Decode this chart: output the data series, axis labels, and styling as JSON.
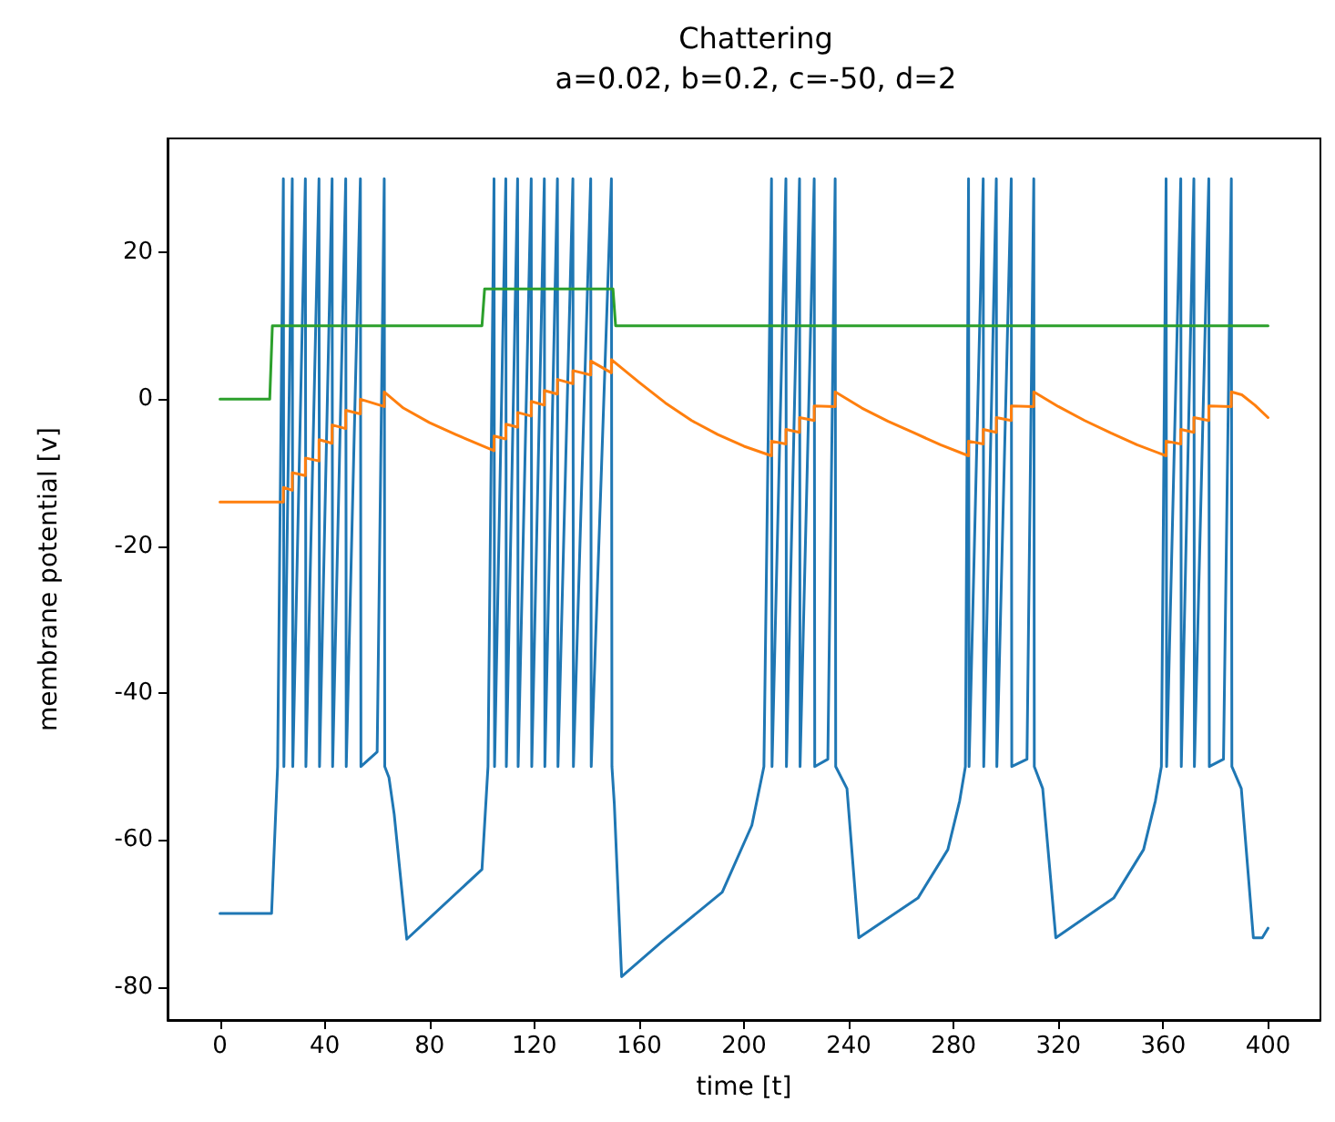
{
  "chart_data": {
    "type": "line",
    "title": "Chattering",
    "subtitle": "a=0.02, b=0.2, c=-50, d=2",
    "xlabel": "time [t]",
    "ylabel": "membrane potential [v]",
    "xlim": [
      -20,
      420
    ],
    "xticks": [
      0,
      40,
      80,
      120,
      160,
      200,
      240,
      280,
      320,
      360,
      400
    ],
    "ylim": [
      -84.5,
      35.5
    ],
    "yticks": [
      -80,
      -60,
      -40,
      -20,
      0,
      20
    ],
    "grid": false,
    "marker": "none",
    "line_style": "solid",
    "series": [
      {
        "color": "#1f77b4",
        "x": [
          0,
          19.7,
          22,
          24.2,
          24.4,
          27.6,
          27.8,
          32.6,
          32.8,
          37.8,
          38,
          42.8,
          43,
          48,
          48.2,
          53.6,
          53.8,
          60,
          62.7,
          62.9,
          64.5,
          66.5,
          71.3,
          100,
          102.3,
          104.6,
          104.8,
          109.1,
          109.3,
          113.6,
          113.8,
          118.8,
          119,
          123.8,
          124,
          128.8,
          129,
          134.7,
          134.9,
          141.5,
          141.7,
          149.4,
          149.6,
          150.5,
          153.3,
          169.1,
          191.7,
          203,
          207.6,
          210.5,
          210.7,
          216,
          216.2,
          221.2,
          221.4,
          226.8,
          227,
          232,
          234.8,
          235,
          239.3,
          243.8,
          266.4,
          277.8,
          282.3,
          284.5,
          285.7,
          285.9,
          291.3,
          291.5,
          296.3,
          296.5,
          302,
          302.2,
          308,
          310.6,
          310.8,
          314,
          319,
          341.1,
          352.5,
          357,
          359.3,
          361.1,
          361.3,
          366.7,
          366.9,
          371.7,
          371.9,
          377.4,
          377.6,
          383,
          386,
          386.2,
          389.8,
          394.4,
          397.8,
          400
        ],
        "values": [
          -70,
          -70,
          -50,
          30,
          -50,
          30,
          -50,
          30,
          -50,
          30,
          -50,
          30,
          -50,
          30,
          -50,
          30,
          -50,
          -48,
          30,
          -50,
          -51.5,
          -56.5,
          -73.5,
          -64,
          -50,
          30,
          -50,
          30,
          -50,
          30,
          -50,
          30,
          -50,
          30,
          -50,
          30,
          -50,
          30,
          -50,
          30,
          -50,
          30,
          -50,
          -55,
          -78.6,
          -73.7,
          -67.1,
          -58,
          -50,
          30,
          -50,
          30,
          -50,
          30,
          -50,
          30,
          -50,
          -49,
          30,
          -50,
          -53,
          -73.3,
          -67.9,
          -61.3,
          -54.7,
          -50,
          30,
          -50,
          30,
          -50,
          30,
          -50,
          30,
          -50,
          -49,
          30,
          -50,
          -53,
          -73.3,
          -67.9,
          -61.3,
          -54.7,
          -50,
          30,
          -50,
          30,
          -50,
          30,
          -50,
          30,
          -50,
          -49,
          30,
          -50,
          -53,
          -73.3,
          -73.3,
          -72
        ]
      },
      {
        "color": "#ff7f0e",
        "x": [
          0,
          24.2,
          24.2,
          27.6,
          27.6,
          32.6,
          32.6,
          37.8,
          37.8,
          42.8,
          42.8,
          48,
          48,
          53.6,
          53.6,
          62.7,
          62.7,
          70,
          80,
          90,
          104.6,
          104.6,
          109.1,
          109.1,
          113.6,
          113.6,
          118.8,
          118.8,
          123.8,
          123.8,
          128.8,
          128.8,
          134.7,
          134.7,
          141.5,
          141.5,
          149.4,
          149.4,
          160,
          170,
          180,
          190,
          200,
          210.5,
          210.5,
          216,
          216,
          221.2,
          221.2,
          226.8,
          226.8,
          234.8,
          234.8,
          245,
          255,
          265,
          275,
          285.7,
          285.7,
          291.3,
          291.3,
          296.3,
          296.3,
          302,
          302,
          310.6,
          310.6,
          320,
          330,
          340,
          350,
          361.1,
          361.1,
          366.7,
          366.7,
          371.7,
          371.7,
          377.4,
          377.4,
          386,
          386,
          390,
          395,
          400
        ],
        "values": [
          -14,
          -14,
          -12,
          -12.4,
          -10,
          -10.4,
          -8,
          -8.4,
          -5.5,
          -6,
          -3.5,
          -4,
          -1.5,
          -2,
          0,
          -1,
          1,
          -1.2,
          -3.2,
          -4.8,
          -7,
          -5,
          -5.4,
          -3.4,
          -3.8,
          -1.8,
          -2.3,
          -0.3,
          -0.8,
          1.2,
          0.7,
          2.7,
          2.1,
          3.9,
          3.3,
          5.2,
          3.6,
          5.4,
          2.3,
          -0.5,
          -2.9,
          -4.8,
          -6.4,
          -7.7,
          -5.7,
          -6.1,
          -4.1,
          -4.5,
          -2.5,
          -2.9,
          -0.9,
          -1,
          1,
          -1.2,
          -3,
          -4.6,
          -6.2,
          -7.7,
          -5.7,
          -6.1,
          -4.1,
          -4.5,
          -2.5,
          -2.9,
          -0.9,
          -1,
          1,
          -1,
          -2.9,
          -4.6,
          -6.2,
          -7.7,
          -5.7,
          -6.1,
          -4.1,
          -4.5,
          -2.5,
          -2.9,
          -0.9,
          -1,
          1,
          0.6,
          -0.8,
          -2.5
        ]
      },
      {
        "color": "#2ca02c",
        "x": [
          0,
          19,
          20,
          100,
          101,
          150,
          151,
          400
        ],
        "values": [
          0,
          0,
          10,
          10,
          15,
          15,
          10,
          10
        ]
      }
    ]
  }
}
